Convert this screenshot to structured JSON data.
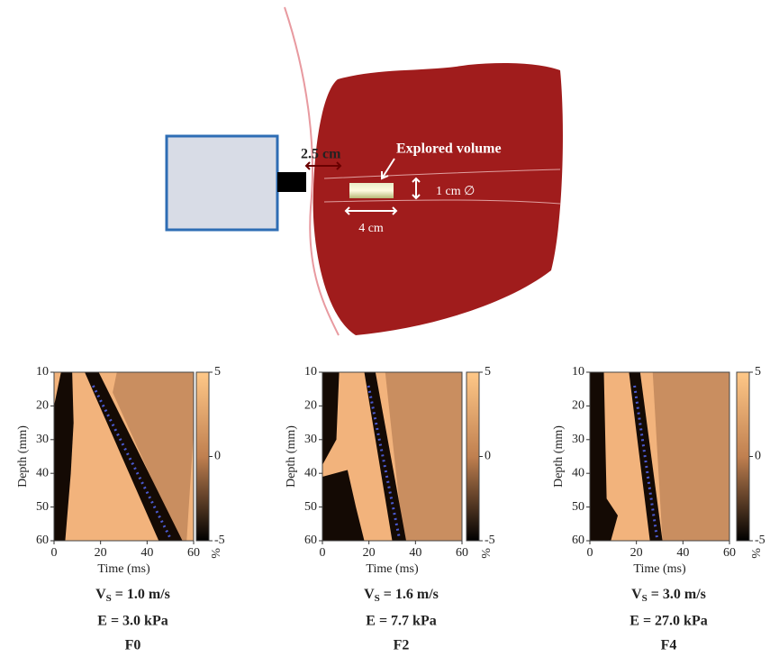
{
  "diagram": {
    "depth_label": "2.5 cm",
    "volume_label": "Explored volume",
    "diameter_label": "1 cm ∅",
    "length_label": "4 cm"
  },
  "panels": [
    {
      "xlabel": "Time (ms)",
      "ylabel": "Depth (mm)",
      "xlim": [
        0,
        60
      ],
      "ylim": [
        10,
        60
      ],
      "xticks": [
        0,
        20,
        40,
        60
      ],
      "yticks": [
        10,
        20,
        30,
        40,
        50,
        60
      ],
      "clim": [
        -5,
        5
      ],
      "cticks": [
        5,
        0,
        -5
      ],
      "cunit": "%",
      "vs_symbol": "V",
      "vs_subscript": "S",
      "vs_text": " = 1.0 m/s",
      "e_text": "E = 3.0 kPa",
      "label": "F0"
    },
    {
      "xlabel": "Time (ms)",
      "ylabel": "Depth (mm)",
      "xlim": [
        0,
        60
      ],
      "ylim": [
        10,
        60
      ],
      "xticks": [
        0,
        20,
        40,
        60
      ],
      "yticks": [
        10,
        20,
        30,
        40,
        50,
        60
      ],
      "clim": [
        -5,
        5
      ],
      "cticks": [
        5,
        0,
        -5
      ],
      "cunit": "%",
      "vs_symbol": "V",
      "vs_subscript": "S",
      "vs_text": " = 1.6 m/s",
      "e_text": "E = 7.7 kPa",
      "label": "F2"
    },
    {
      "xlabel": "Time (ms)",
      "ylabel": "Depth (mm)",
      "xlim": [
        0,
        60
      ],
      "ylim": [
        10,
        60
      ],
      "xticks": [
        0,
        20,
        40,
        60
      ],
      "yticks": [
        10,
        20,
        30,
        40,
        50,
        60
      ],
      "clim": [
        -5,
        5
      ],
      "cticks": [
        5,
        0,
        -5
      ],
      "cunit": "%",
      "vs_symbol": "V",
      "vs_subscript": "S",
      "vs_text": " = 3.0 m/s",
      "e_text": "E = 27.0 kPa",
      "label": "F4"
    }
  ]
}
